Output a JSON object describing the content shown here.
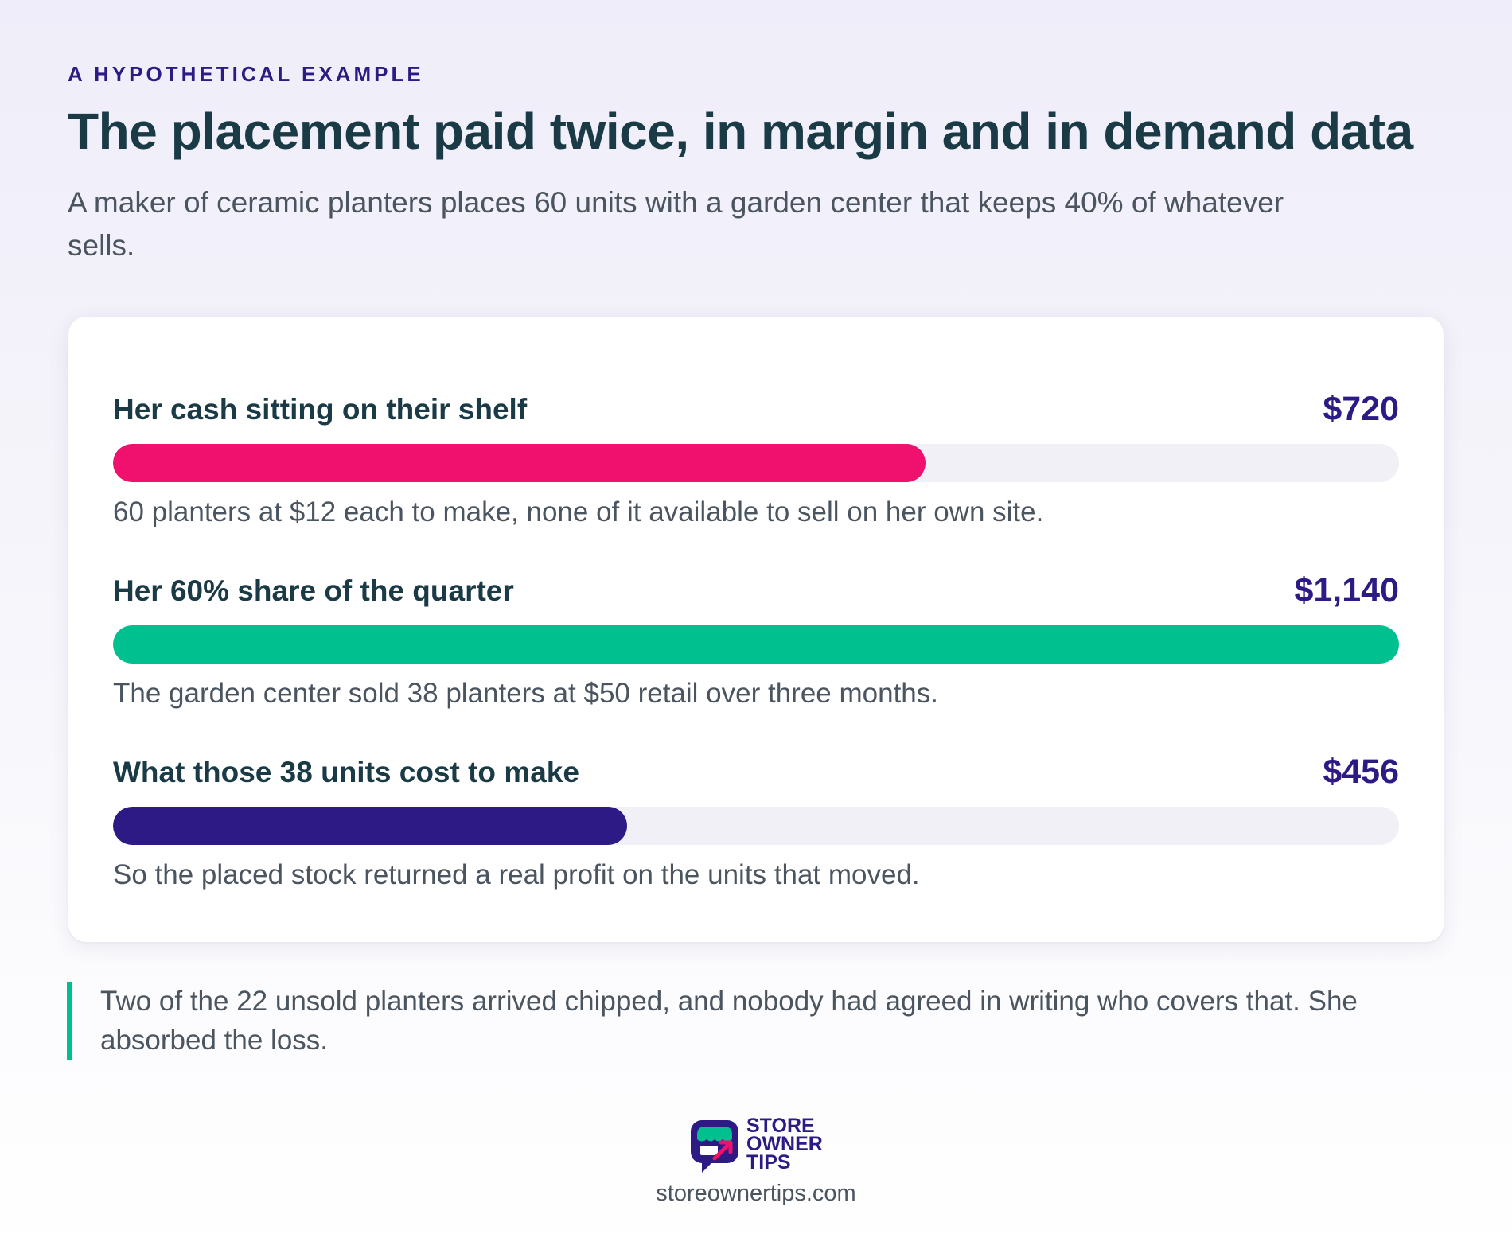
{
  "header": {
    "eyebrow": "A HYPOTHETICAL EXAMPLE",
    "title": "The placement paid twice, in margin and in demand data",
    "subtitle": "A maker of ceramic planters places 60 units with a garden center that keeps 40% of whatever sells."
  },
  "chart_data": {
    "type": "bar",
    "orientation": "horizontal",
    "max_value": 1140,
    "categories": [
      "Her cash sitting on their shelf",
      "Her 60% share of the quarter",
      "What those 38 units cost to make"
    ],
    "values": [
      720,
      1140,
      456
    ],
    "value_labels": [
      "$720",
      "$1,140",
      "$456"
    ],
    "notes": [
      "60 planters at $12 each to make, none of it available to sell on her own site.",
      "The garden center sold 38 planters at $50 retail over three months.",
      "So the placed stock returned a real profit on the units that moved."
    ],
    "colors": [
      "#f0106e",
      "#00c08f",
      "#2e1a85"
    ],
    "track_color": "#f1f0f6"
  },
  "callout": {
    "text": "Two of the 22 unsold planters arrived chipped, and nobody had agreed in writing who covers that. She absorbed the loss."
  },
  "footer": {
    "logo_lines": [
      "STORE",
      "OWNER",
      "TIPS"
    ],
    "url": "storeownertips.com"
  }
}
